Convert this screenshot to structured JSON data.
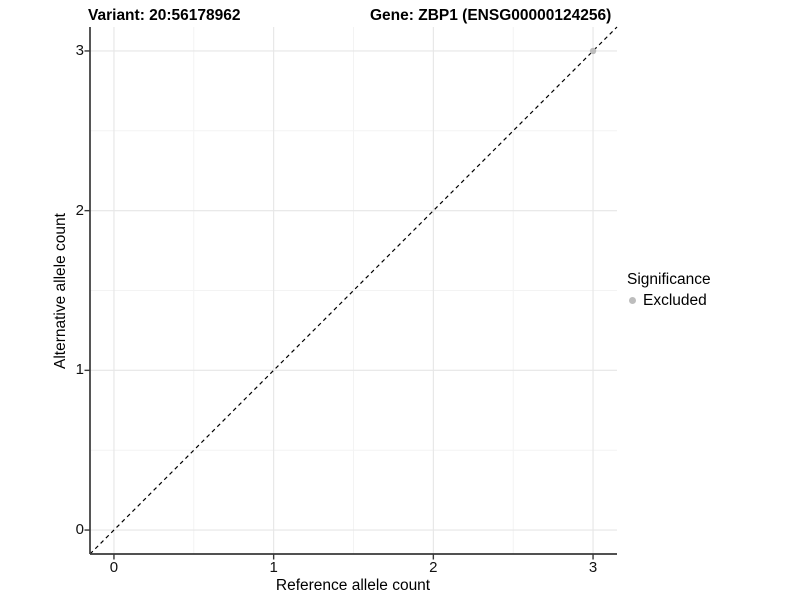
{
  "header": {
    "title_left": "Variant: 20:56178962",
    "title_right": "Gene: ZBP1 (ENSG00000124256)"
  },
  "axes": {
    "x_title": "Reference allele count",
    "y_title": "Alternative allele count"
  },
  "legend": {
    "title": "Significance",
    "items": [
      {
        "label": "Excluded",
        "color": "#bdbdbd"
      }
    ]
  },
  "chart_data": {
    "type": "scatter",
    "title": "Variant: 20:56178962 — Gene: ZBP1 (ENSG00000124256)",
    "xlabel": "Reference allele count",
    "ylabel": "Alternative allele count",
    "xlim": [
      -0.15,
      3.15
    ],
    "ylim": [
      -0.15,
      3.15
    ],
    "x_ticks": [
      0,
      1,
      2,
      3
    ],
    "y_ticks": [
      0,
      1,
      2,
      3
    ],
    "x_minor_ticks": [
      0.5,
      1.5,
      2.5
    ],
    "y_minor_ticks": [
      0.5,
      1.5,
      2.5
    ],
    "grid": true,
    "legend_position": "right",
    "series": [
      {
        "name": "Excluded",
        "color": "#bdbdbd",
        "points": [
          [
            3,
            3
          ]
        ]
      }
    ],
    "reference_line": {
      "slope": 1,
      "intercept": 0,
      "style": "dashed",
      "color": "#000000"
    },
    "style": {
      "grid_major_color": "#e6e6e6",
      "grid_minor_color": "#f3f3f3",
      "axis_line_color": "#383838",
      "tick_text_color": "#111111",
      "background": "#ffffff"
    }
  }
}
